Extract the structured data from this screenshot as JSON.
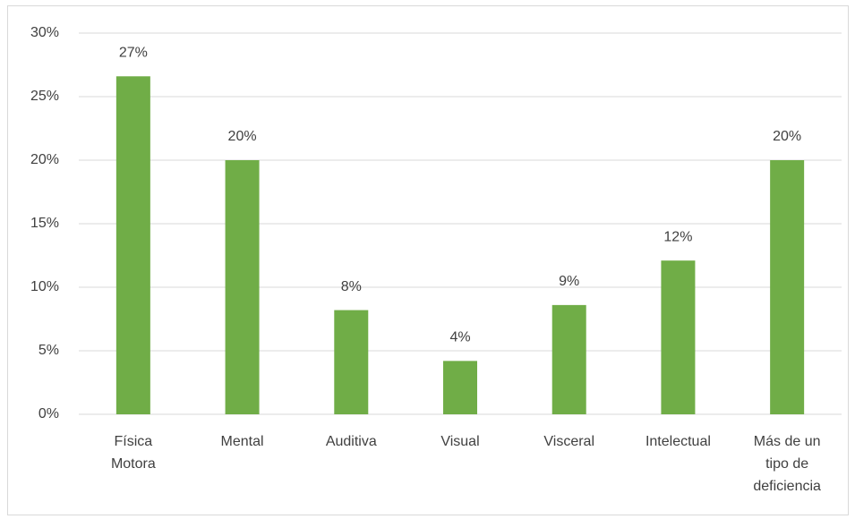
{
  "chart_data": {
    "type": "bar",
    "categories": [
      "Física Motora",
      "Mental",
      "Auditiva",
      "Visual",
      "Visceral",
      "Intelectual",
      "Más de un tipo de deficiencia"
    ],
    "values": [
      26.6,
      20,
      8.2,
      4.2,
      8.6,
      12.1,
      20
    ],
    "value_labels": [
      "27%",
      "20%",
      "8%",
      "4%",
      "9%",
      "12%",
      "20%"
    ],
    "color": "#70ad47",
    "ylim": [
      0,
      30
    ],
    "yticks": [
      {
        "value": 0,
        "label": "0%"
      },
      {
        "value": 5,
        "label": "5%"
      },
      {
        "value": 10,
        "label": "10%"
      },
      {
        "value": 15,
        "label": "15%"
      },
      {
        "value": 20,
        "label": "20%"
      },
      {
        "value": 25,
        "label": "25%"
      },
      {
        "value": 30,
        "label": "30%"
      }
    ],
    "grid": true
  }
}
